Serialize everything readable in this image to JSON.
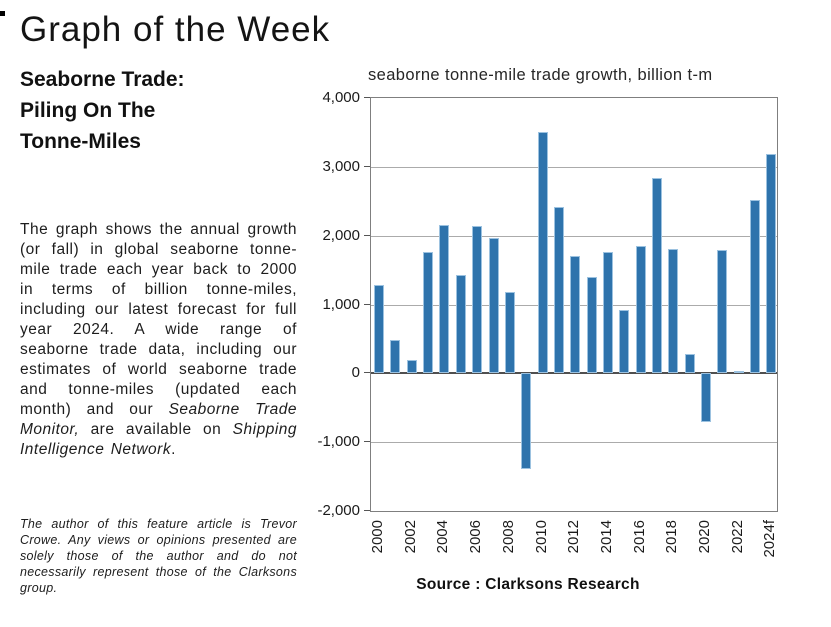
{
  "header": {
    "title": "Graph of the Week"
  },
  "article": {
    "subtitle_lines": [
      "Seaborne Trade:",
      "Piling On The",
      "Tonne-Miles"
    ],
    "body": {
      "text1": "The graph shows the annual growth (or fall) in global seaborne tonne-mile trade each year back to 2000 in terms of billion tonne-miles, including our latest forecast for full year 2024. A wide range of seaborne trade data, including our estimates of world seaborne trade and tonne-miles (updated each month) and our ",
      "italic1": "Seaborne Trade Monitor,",
      "text2": " are available on ",
      "italic2": "Shipping Intelligence Network",
      "text3": "."
    },
    "footnote": "The author of this feature article is Trevor Crowe. Any views or opinions presented are solely those of the author and do not necessarily represent those of the Clarksons group."
  },
  "chart_data": {
    "type": "bar",
    "title": "seaborne tonne-mile trade growth, billion t-m",
    "source": "Source : Clarksons Research",
    "xlabel": "",
    "ylabel": "billion tonne-miles",
    "ylim": [
      -2000,
      4000
    ],
    "ytick_step": 1000,
    "ytick_values": [
      4000,
      3000,
      2000,
      1000,
      0,
      -1000,
      -2000
    ],
    "ytick_labels": [
      "4,000",
      "3,000",
      "2,000",
      "1,000",
      "0",
      "-1,000",
      "-2,000"
    ],
    "grid": true,
    "legend": false,
    "bar_color": "#2e73ac",
    "bar_border_color": "#9cc2e0",
    "x_tick_every": 2,
    "categories": [
      "2000",
      "2001",
      "2002",
      "2003",
      "2004",
      "2005",
      "2006",
      "2007",
      "2008",
      "2009",
      "2010",
      "2011",
      "2012",
      "2013",
      "2014",
      "2015",
      "2016",
      "2017",
      "2018",
      "2019",
      "2020",
      "2021",
      "2022",
      "2023",
      "2024f"
    ],
    "values": [
      1290,
      490,
      200,
      1770,
      2160,
      1430,
      2140,
      1970,
      1180,
      -1390,
      3500,
      2410,
      1700,
      1400,
      1770,
      920,
      1850,
      2840,
      1800,
      280,
      -710,
      1790,
      30,
      2520,
      3190
    ]
  }
}
